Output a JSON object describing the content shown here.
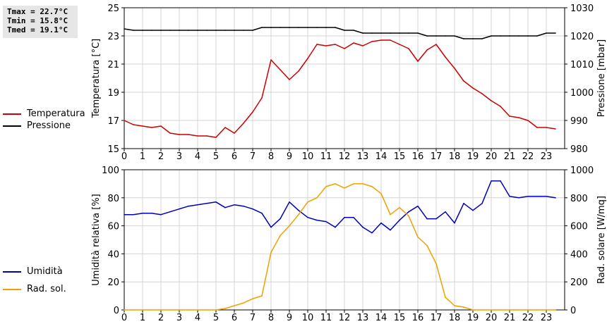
{
  "stats": {
    "tmax": "Tmax = 22.7°C",
    "tmin": "Tmin = 15.8°C",
    "tmed": "Tmed = 19.1°C"
  },
  "legend_top": [
    {
      "label": "Temperatura",
      "color": "#cc0000"
    },
    {
      "label": "Pressione",
      "color": "#000000"
    }
  ],
  "legend_bottom": [
    {
      "label": "Umidità",
      "color": "#0000bb"
    },
    {
      "label": "Rad. sol.",
      "color": "#f0a000"
    }
  ],
  "chart_data": [
    {
      "type": "line",
      "ylabel": "Temperatura [°C]",
      "y2label": "Pressione [mbar]",
      "xlim": [
        0,
        24
      ],
      "ylim": [
        15,
        25
      ],
      "y2lim": [
        980,
        1030
      ],
      "xticks": [
        "0",
        "1",
        "2",
        "3",
        "4",
        "5",
        "6",
        "7",
        "8",
        "9",
        "10",
        "11",
        "12",
        "13",
        "14",
        "15",
        "16",
        "17",
        "18",
        "19",
        "20",
        "21",
        "22",
        "23"
      ],
      "yticks": [
        "15",
        "17",
        "19",
        "21",
        "23",
        "25"
      ],
      "y2ticks": [
        "980",
        "990",
        "1000",
        "1010",
        "1020",
        "1030"
      ],
      "grid": true,
      "series": [
        {
          "name": "Temperatura",
          "color": "#cc0000",
          "axis": "left",
          "x": [
            0,
            0.5,
            1,
            1.5,
            2,
            2.5,
            3,
            3.5,
            4,
            4.5,
            5,
            5.5,
            6,
            6.5,
            7,
            7.5,
            8,
            8.5,
            9,
            9.5,
            10,
            10.5,
            11,
            11.5,
            12,
            12.5,
            13,
            13.5,
            14,
            14.5,
            15,
            15.5,
            16,
            16.5,
            17,
            17.5,
            18,
            18.5,
            19,
            19.5,
            20,
            20.5,
            21,
            21.5,
            22,
            22.5,
            23,
            23.5
          ],
          "values": [
            17.0,
            16.7,
            16.6,
            16.5,
            16.6,
            16.1,
            16.0,
            16.0,
            15.9,
            15.9,
            15.8,
            16.5,
            16.1,
            16.8,
            17.6,
            18.6,
            21.3,
            20.6,
            19.9,
            20.5,
            21.4,
            22.4,
            22.3,
            22.4,
            22.1,
            22.5,
            22.3,
            22.6,
            22.7,
            22.7,
            22.4,
            22.1,
            21.2,
            22.0,
            22.4,
            21.5,
            20.7,
            19.8,
            19.3,
            18.9,
            18.4,
            18.0,
            17.3,
            17.2,
            17.0,
            16.5,
            16.5,
            16.4
          ]
        },
        {
          "name": "Pressione",
          "color": "#000000",
          "axis": "right",
          "x": [
            0,
            0.5,
            1,
            1.5,
            2,
            2.5,
            3,
            3.5,
            4,
            4.5,
            5,
            5.5,
            6,
            6.5,
            7,
            7.5,
            8,
            8.5,
            9,
            9.5,
            10,
            10.5,
            11,
            11.5,
            12,
            12.5,
            13,
            13.5,
            14,
            14.5,
            15,
            15.5,
            16,
            16.5,
            17,
            17.5,
            18,
            18.5,
            19,
            19.5,
            20,
            20.5,
            21,
            21.5,
            22,
            22.5,
            23,
            23.5
          ],
          "values": [
            1022.5,
            1022,
            1022,
            1022,
            1022,
            1022,
            1022,
            1022,
            1022,
            1022,
            1022,
            1022,
            1022,
            1022,
            1022,
            1023,
            1023,
            1023,
            1023,
            1023,
            1023,
            1023,
            1023,
            1023,
            1022,
            1022,
            1021,
            1021,
            1021,
            1021,
            1021,
            1021,
            1021,
            1020,
            1020,
            1020,
            1020,
            1019,
            1019,
            1019,
            1020,
            1020,
            1020,
            1020,
            1020,
            1020,
            1021,
            1021
          ]
        }
      ]
    },
    {
      "type": "line",
      "ylabel": "Umidità relativa [%]",
      "y2label": "Rad. solare [W/mq]",
      "xlim": [
        0,
        24
      ],
      "ylim": [
        0,
        100
      ],
      "y2lim": [
        0,
        1000
      ],
      "xticks": [
        "0",
        "1",
        "2",
        "3",
        "4",
        "5",
        "6",
        "7",
        "8",
        "9",
        "10",
        "11",
        "12",
        "13",
        "14",
        "15",
        "16",
        "17",
        "18",
        "19",
        "20",
        "21",
        "22",
        "23"
      ],
      "yticks": [
        "0",
        "20",
        "40",
        "60",
        "80",
        "100"
      ],
      "y2ticks": [
        "0",
        "200",
        "400",
        "600",
        "800",
        "1000"
      ],
      "grid": true,
      "series": [
        {
          "name": "Umidità",
          "color": "#0000bb",
          "axis": "left",
          "x": [
            0,
            0.5,
            1,
            1.5,
            2,
            2.5,
            3,
            3.5,
            4,
            4.5,
            5,
            5.5,
            6,
            6.5,
            7,
            7.5,
            8,
            8.5,
            9,
            9.5,
            10,
            10.5,
            11,
            11.5,
            12,
            12.5,
            13,
            13.5,
            14,
            14.5,
            15,
            15.5,
            16,
            16.5,
            17,
            17.5,
            18,
            18.5,
            19,
            19.5,
            20,
            20.5,
            21,
            21.5,
            22,
            22.5,
            23,
            23.5
          ],
          "values": [
            68,
            68,
            69,
            69,
            68,
            70,
            72,
            74,
            75,
            76,
            77,
            73,
            75,
            74,
            72,
            69,
            59,
            65,
            77,
            71,
            66,
            64,
            63,
            59,
            66,
            66,
            59,
            55,
            62,
            57,
            64,
            70,
            74,
            65,
            65,
            70,
            62,
            76,
            71,
            76,
            92,
            92,
            81,
            80,
            81,
            81,
            81,
            80
          ]
        },
        {
          "name": "Rad. sol.",
          "color": "#f0a000",
          "axis": "right",
          "x": [
            0,
            0.5,
            1,
            1.5,
            2,
            2.5,
            3,
            3.5,
            4,
            4.5,
            5,
            5.5,
            6,
            6.5,
            7,
            7.5,
            8,
            8.5,
            9,
            9.5,
            10,
            10.5,
            11,
            11.5,
            12,
            12.5,
            13,
            13.5,
            14,
            14.5,
            15,
            15.5,
            16,
            16.5,
            17,
            17.5,
            18,
            18.5,
            19,
            19.5,
            20,
            20.5,
            21,
            21.5,
            22,
            22.5,
            23,
            23.5
          ],
          "values": [
            0,
            0,
            0,
            0,
            0,
            0,
            0,
            0,
            0,
            0,
            0,
            10,
            30,
            50,
            80,
            100,
            410,
            530,
            600,
            680,
            770,
            800,
            880,
            900,
            870,
            900,
            900,
            880,
            830,
            680,
            730,
            670,
            520,
            460,
            330,
            90,
            30,
            20,
            0,
            0,
            0,
            0,
            0,
            0,
            0,
            0,
            0,
            0
          ]
        }
      ]
    }
  ]
}
